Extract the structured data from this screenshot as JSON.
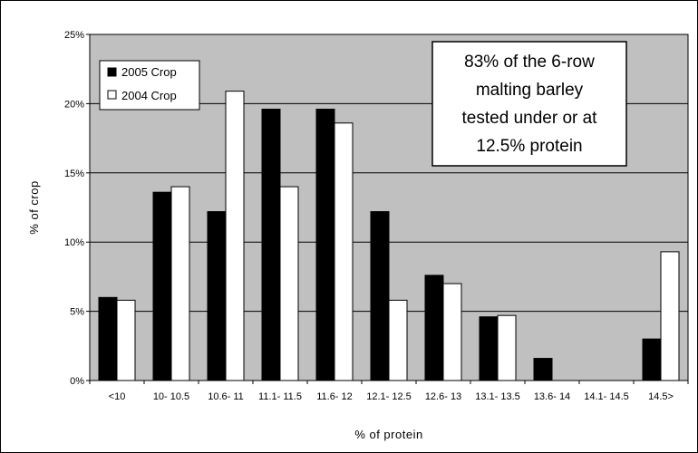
{
  "chart_data": {
    "type": "bar",
    "title": "",
    "xlabel": "% of protein",
    "ylabel": "% of crop",
    "categories": [
      "<10",
      "10- 10.5",
      "10.6- 11",
      "11.1- 11.5",
      "11.6- 12",
      "12.1- 12.5",
      "12.6- 13",
      "13.1- 13.5",
      "13.6- 14",
      "14.1- 14.5",
      "14.5>"
    ],
    "series": [
      {
        "name": "2005 Crop",
        "values": [
          6.0,
          13.6,
          12.2,
          19.6,
          19.6,
          12.2,
          7.6,
          4.6,
          1.6,
          0,
          3.0
        ]
      },
      {
        "name": "2004 Crop",
        "values": [
          5.8,
          14.0,
          20.9,
          14.0,
          18.6,
          5.8,
          7.0,
          4.7,
          0,
          0,
          9.3
        ]
      }
    ],
    "ylim": [
      0,
      25
    ],
    "yticks": [
      "0%",
      "5%",
      "10%",
      "15%",
      "20%",
      "25%"
    ],
    "grid": true,
    "legend_position": "top-left",
    "annotation": [
      "83% of the 6-row",
      "malting barley",
      "tested under or at",
      "12.5% protein"
    ]
  },
  "colors": {
    "plot_background": "#c0c0c0",
    "series_2005": "#000000",
    "series_2004": "#ffffff",
    "gridline": "#000000"
  }
}
